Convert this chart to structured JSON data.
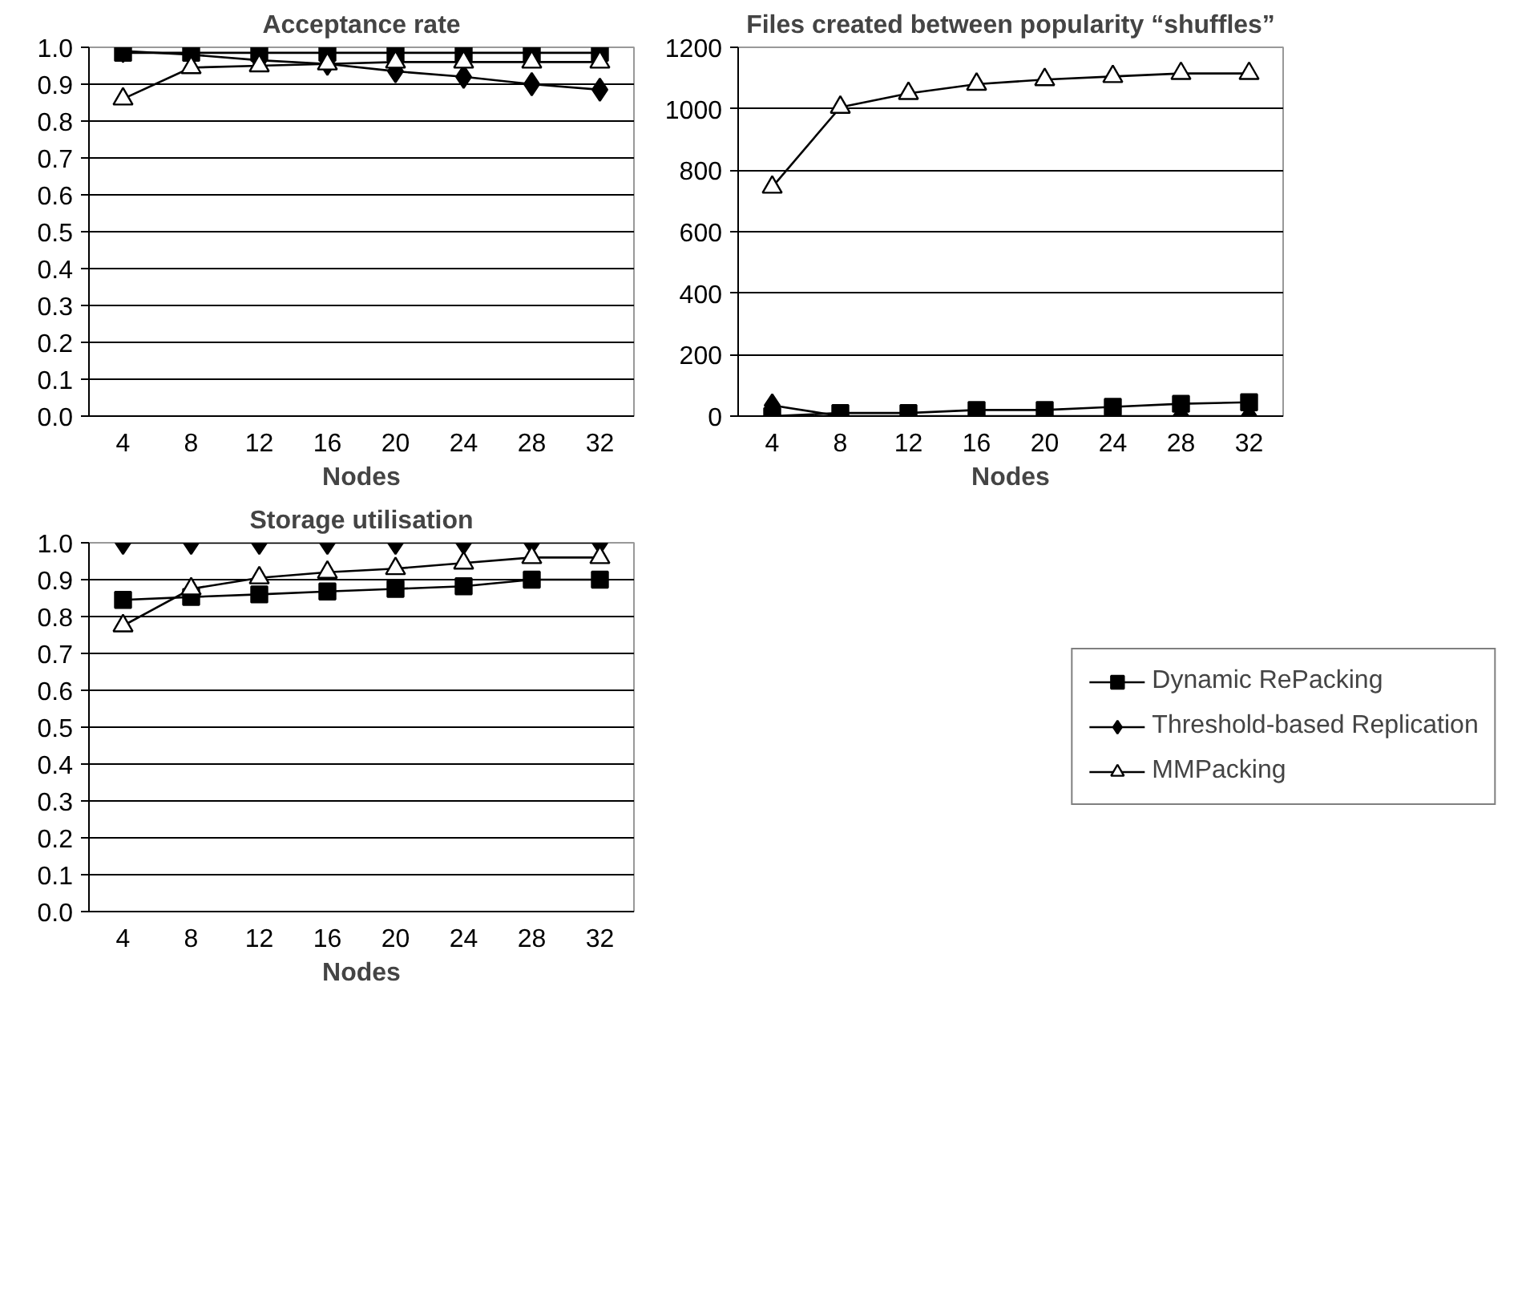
{
  "chart_data": [
    {
      "type": "line",
      "title": "Acceptance rate",
      "xlabel": "Nodes",
      "categories": [
        "4",
        "8",
        "12",
        "16",
        "20",
        "24",
        "28",
        "32"
      ],
      "ylim": [
        0,
        1
      ],
      "yticks": [
        "0.0",
        0.1,
        0.2,
        0.3,
        0.4,
        0.5,
        0.6,
        0.7,
        0.8,
        0.9,
        "1.0"
      ],
      "grid": "y",
      "legend": false,
      "line_style": "solid",
      "series": [
        {
          "color": "#000000",
          "marker": "square",
          "values": [
            0.985,
            0.985,
            0.985,
            0.985,
            0.985,
            0.985,
            0.985,
            0.985
          ]
        },
        {
          "color": "#000000",
          "marker": "diamond",
          "values": [
            0.99,
            0.98,
            0.965,
            0.955,
            0.935,
            0.92,
            0.9,
            0.885
          ]
        },
        {
          "color": "#ffffff",
          "marker": "triangle",
          "values": [
            0.86,
            0.945,
            0.95,
            0.955,
            0.96,
            0.96,
            0.96,
            0.96
          ]
        }
      ]
    },
    {
      "type": "line",
      "title": "Files created between popularity “shuffles”",
      "xlabel": "Nodes",
      "categories": [
        "4",
        "8",
        "12",
        "16",
        "20",
        "24",
        "28",
        "32"
      ],
      "ylim": [
        0,
        1200
      ],
      "yticks": [
        0,
        200,
        400,
        600,
        800,
        1000,
        1200
      ],
      "grid": "y",
      "legend": false,
      "line_style": "solid",
      "series": [
        {
          "color": "#000000",
          "marker": "square",
          "values": [
            0,
            10,
            10,
            20,
            20,
            30,
            40,
            45
          ]
        },
        {
          "color": "#000000",
          "marker": "diamond",
          "values": [
            35,
            0,
            0,
            0,
            0,
            0,
            0,
            0
          ]
        },
        {
          "color": "#ffffff",
          "marker": "triangle",
          "values": [
            745,
            1005,
            1050,
            1080,
            1095,
            1105,
            1115,
            1115
          ]
        }
      ]
    },
    {
      "type": "line",
      "title": "Storage utilisation",
      "xlabel": "Nodes",
      "categories": [
        "4",
        "8",
        "12",
        "16",
        "20",
        "24",
        "28",
        "32"
      ],
      "ylim": [
        0,
        1
      ],
      "yticks": [
        "0.0",
        0.1,
        0.2,
        0.3,
        0.4,
        0.5,
        0.6,
        0.7,
        0.8,
        0.9,
        "1.0"
      ],
      "grid": "y",
      "legend": "right",
      "line_style": "solid",
      "series": [
        {
          "name": "Dynamic RePacking",
          "color": "#000000",
          "marker": "square",
          "values": [
            0.845,
            0.853,
            0.86,
            0.868,
            0.875,
            0.882,
            0.9,
            0.9
          ]
        },
        {
          "name": "Threshold-based Replication",
          "color": "#000000",
          "marker": "diamond",
          "values": [
            1.0,
            1.0,
            1.0,
            1.0,
            1.0,
            1.0,
            1.0,
            1.0
          ]
        },
        {
          "name": "MMPacking",
          "color": "#ffffff",
          "marker": "triangle",
          "values": [
            0.775,
            0.875,
            0.905,
            0.92,
            0.93,
            0.945,
            0.96,
            0.96
          ]
        }
      ]
    }
  ]
}
